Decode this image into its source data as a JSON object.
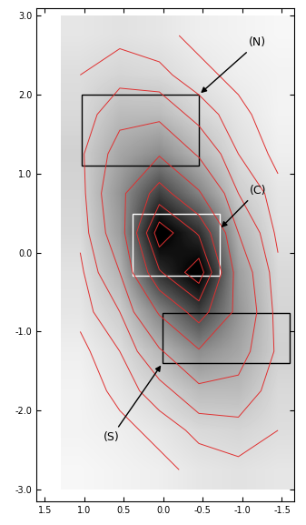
{
  "chart_data": {
    "type": "image",
    "xlim": [
      1.6,
      -1.65
    ],
    "ylim": [
      -3.15,
      3.1
    ],
    "xticks": [
      {
        "value": 1.5,
        "label": "1.5"
      },
      {
        "value": 1.0,
        "label": "1.0"
      },
      {
        "value": 0.5,
        "label": "0.5"
      },
      {
        "value": 0.0,
        "label": "0.0"
      },
      {
        "value": -0.5,
        "label": "-0.5"
      },
      {
        "value": -1.0,
        "label": "-1.0"
      },
      {
        "value": -1.5,
        "label": "-1.5"
      }
    ],
    "yticks": [
      {
        "value": 3.0,
        "label": "3.0"
      },
      {
        "value": 2.0,
        "label": "2.0"
      },
      {
        "value": 1.0,
        "label": "1.0"
      },
      {
        "value": 0.0,
        "label": "0.0"
      },
      {
        "value": -1.0,
        "label": "-1.0"
      },
      {
        "value": -2.0,
        "label": "-2.0"
      },
      {
        "value": -3.0,
        "label": "-3.0"
      }
    ],
    "x_edges": [
      1.3,
      -1.7
    ],
    "y_edges": [
      -3.0,
      3.0
    ],
    "cells": [
      [
        6,
        7,
        6,
        4,
        3,
        2
      ],
      [
        8,
        10,
        9,
        6,
        4,
        3
      ],
      [
        9,
        16,
        16,
        10,
        6,
        3
      ],
      [
        11,
        21,
        27,
        17,
        8,
        4
      ],
      [
        10,
        25,
        45,
        29,
        12,
        6
      ],
      [
        9,
        23,
        63,
        49,
        18,
        7
      ],
      [
        7,
        18,
        49,
        63,
        23,
        9
      ],
      [
        6,
        12,
        29,
        45,
        25,
        10
      ],
      [
        4,
        8,
        17,
        27,
        21,
        11
      ],
      [
        3,
        6,
        10,
        16,
        16,
        9
      ],
      [
        3,
        4,
        6,
        9,
        10,
        8
      ],
      [
        2,
        3,
        4,
        6,
        7,
        6
      ]
    ],
    "color_range": [
      0,
      60
    ],
    "contour_levels": [
      5,
      8,
      12,
      18,
      28,
      40,
      50,
      58
    ],
    "color": "#e03030",
    "regions": [
      {
        "label": "(N)",
        "x": [
          1.03,
          -0.45
        ],
        "y": [
          1.1,
          2.0
        ],
        "color": "#000000"
      },
      {
        "label": "(C)",
        "x": [
          0.39,
          -0.71
        ],
        "y": [
          -0.29,
          0.49
        ],
        "color": "#ffffff"
      },
      {
        "label": "(S)",
        "x": [
          0.01,
          -1.6
        ],
        "y": [
          -1.4,
          -0.77
        ],
        "color": "#000000"
      }
    ]
  }
}
